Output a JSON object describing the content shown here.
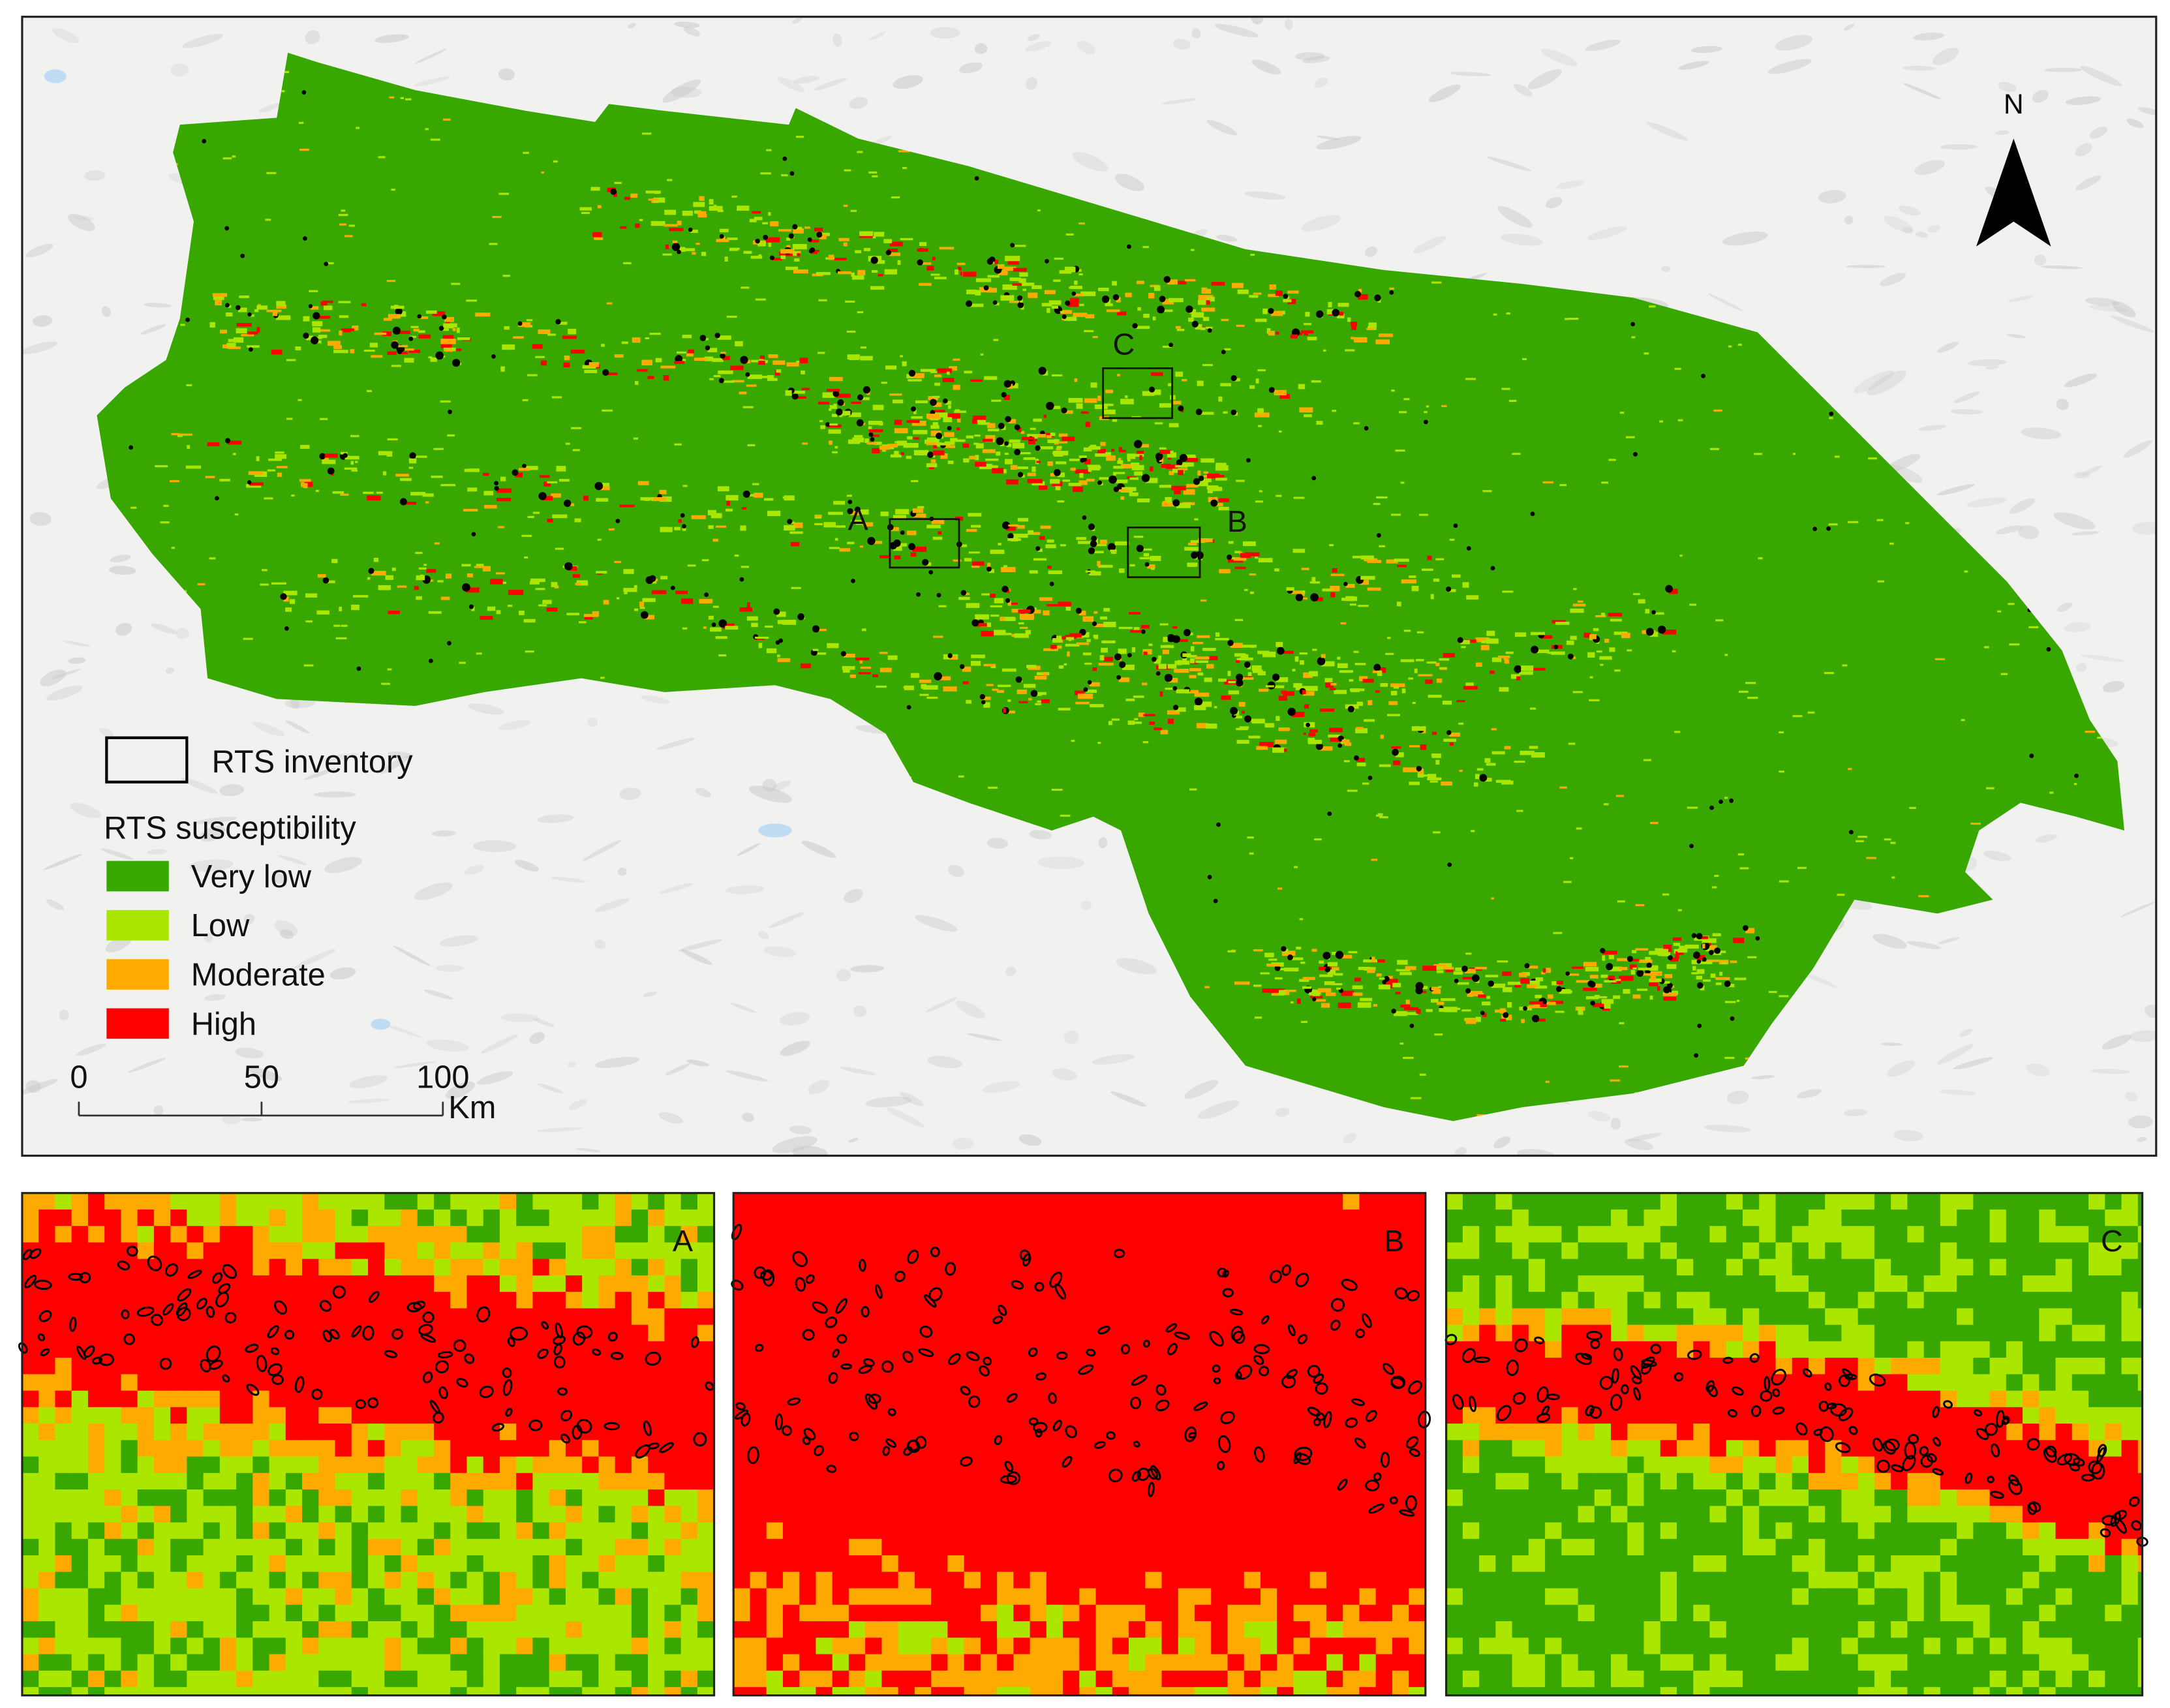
{
  "main_map": {
    "labels": {
      "a": "A",
      "b": "B",
      "c": "C"
    },
    "north": "N"
  },
  "legend": {
    "inventory": "RTS inventory",
    "title": "RTS susceptibility",
    "classes": [
      {
        "label": "Very low",
        "color": "#38a800"
      },
      {
        "label": "Low",
        "color": "#aae600"
      },
      {
        "label": "Moderate",
        "color": "#ffaa00"
      },
      {
        "label": "High",
        "color": "#ff0000"
      }
    ]
  },
  "scale_bar": {
    "labels": [
      "0",
      "50",
      "100"
    ],
    "unit": "Km"
  },
  "insets": [
    {
      "label": "A"
    },
    {
      "label": "B"
    },
    {
      "label": "C"
    }
  ]
}
